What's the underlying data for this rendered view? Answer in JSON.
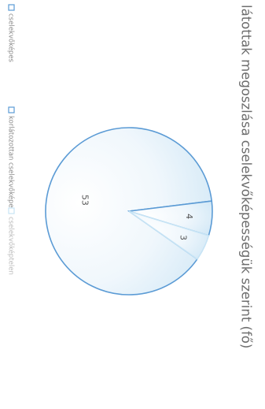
{
  "chart_data": {
    "type": "pie",
    "title": "látottak megoszlása cselekvőképességük szerint (fő)",
    "categories": [
      "cselekvőképes",
      "korlátozottan cselekvőképes",
      "cselekvőképtelen"
    ],
    "values": [
      53,
      4,
      3
    ],
    "legend_position": "left",
    "colors": [
      "#5b9bd5",
      "#5b9bd5",
      "#c7e4f5"
    ]
  }
}
